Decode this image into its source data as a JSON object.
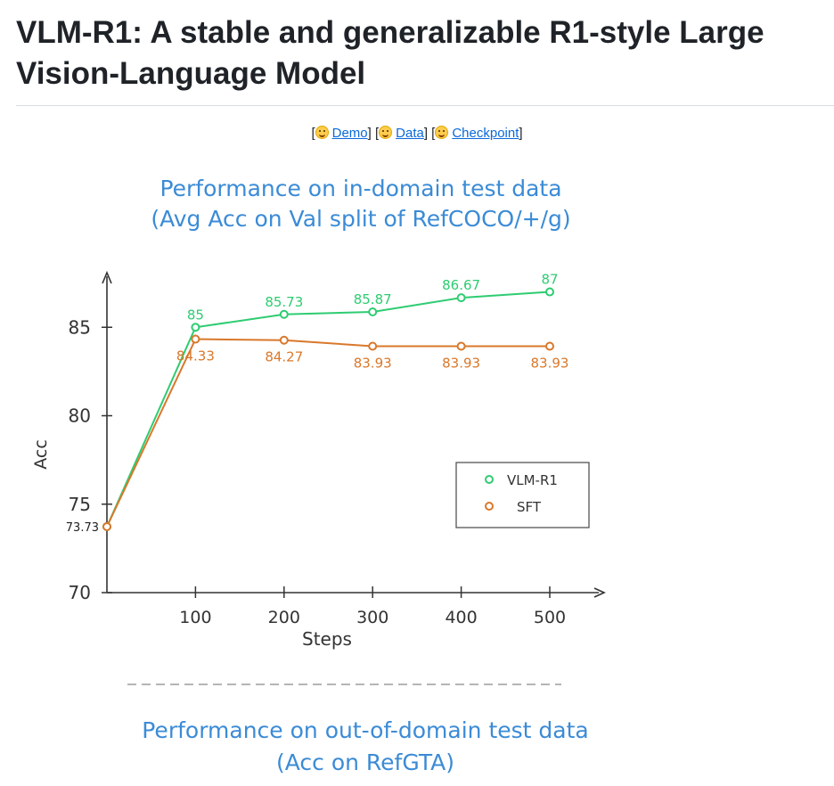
{
  "page": {
    "title": "VLM-R1: A stable and generalizable R1-style Large Vision-Language Model"
  },
  "links": {
    "demo_label": "Demo",
    "data_label": "Data",
    "checkpoint_label": "Checkpoint",
    "open_bracket": "[",
    "close_bracket": "]",
    "icon": "hugging-face-icon"
  },
  "chart_data": [
    {
      "type": "line",
      "title": "Performance on in-domain test data",
      "subtitle": "(Avg Acc on Val split of RefCOCO/+/g)",
      "xlabel": "Steps",
      "ylabel": "Acc",
      "x": [
        0,
        100,
        200,
        300,
        400,
        500
      ],
      "x_tick_labels": [
        "100",
        "200",
        "300",
        "400",
        "500"
      ],
      "y_ticks": [
        70,
        75,
        80,
        85
      ],
      "ylim": [
        70,
        87.5
      ],
      "legend_position": "right",
      "series": [
        {
          "name": "VLM-R1",
          "color": "#2ecc71",
          "values": [
            73.73,
            85,
            85.73,
            85.87,
            86.67,
            87
          ],
          "labels": [
            "73.73",
            "85",
            "85.73",
            "85.87",
            "86.67",
            "87"
          ]
        },
        {
          "name": "SFT",
          "color": "#d9782b",
          "values": [
            73.73,
            84.33,
            84.27,
            83.93,
            83.93,
            83.93
          ],
          "labels": [
            "73.73",
            "84.33",
            "84.27",
            "83.93",
            "83.93",
            "83.93"
          ]
        }
      ]
    },
    {
      "type": "line",
      "title": "Performance on out-of-domain test data",
      "subtitle": "(Acc on RefGTA)"
    }
  ],
  "colors": {
    "title_blue": "#3b8bd6",
    "axis": "#333333",
    "link": "#0969da"
  }
}
